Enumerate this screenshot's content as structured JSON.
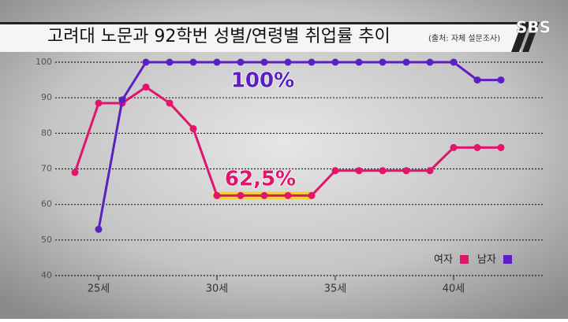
{
  "chart_data": {
    "type": "line",
    "title": "고려대 노문과 92학번 성별/연령별 취업률 추이",
    "subtitle": "(출처: 자체 설문조사)",
    "logo": "SBS",
    "annotations": [
      "100%",
      "62,5%"
    ],
    "x": [
      24,
      25,
      26,
      27,
      28,
      29,
      30,
      31,
      32,
      33,
      34,
      35,
      36,
      37,
      38,
      39,
      40,
      41,
      42
    ],
    "series": [
      {
        "name": "여자",
        "color": "#e0156b",
        "values": [
          69,
          88.5,
          88.5,
          93,
          88.5,
          81.3,
          62.5,
          62.5,
          62.5,
          62.5,
          62.5,
          69.5,
          69.5,
          69.5,
          69.5,
          69.5,
          76,
          76,
          76
        ]
      },
      {
        "name": "남자",
        "color": "#5b1fc4",
        "values": [
          null,
          53,
          89.4,
          100,
          100,
          100,
          100,
          100,
          100,
          100,
          100,
          100,
          100,
          100,
          100,
          100,
          100,
          95,
          95
        ]
      }
    ],
    "xlim": [
      23,
      44
    ],
    "xticks": [
      {
        "value": 25,
        "label": "25세"
      },
      {
        "value": 30,
        "label": "30세"
      },
      {
        "value": 35,
        "label": "35세"
      },
      {
        "value": 40,
        "label": "40세"
      }
    ],
    "ylim": [
      40,
      100
    ],
    "yticks": [
      40,
      50,
      60,
      70,
      80,
      90,
      100
    ],
    "grid": true,
    "legend": "bottom-right"
  }
}
